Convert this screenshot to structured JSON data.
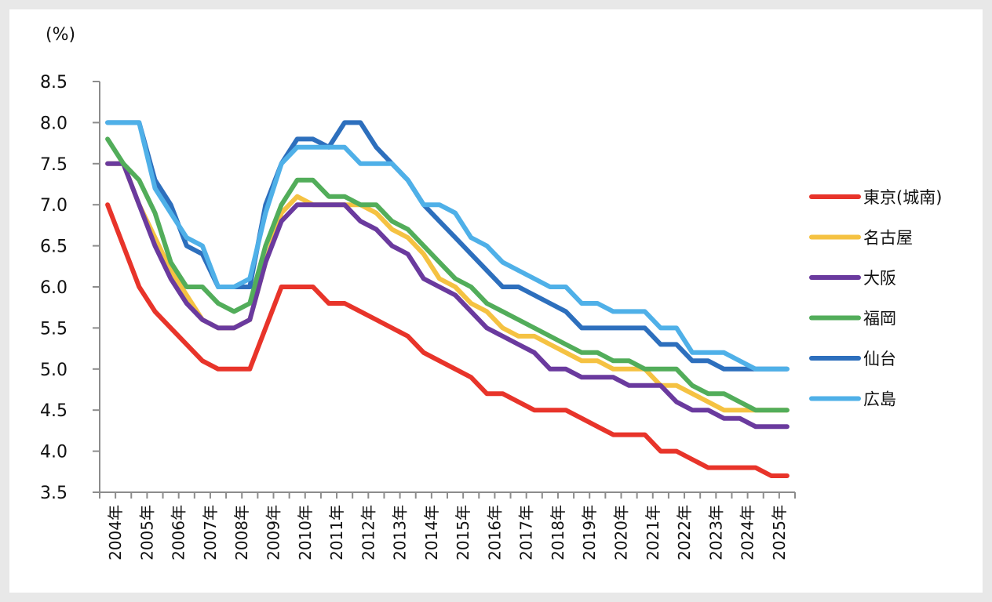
{
  "chart_data": {
    "type": "line",
    "title": "",
    "ylabel": "(%)",
    "xlabel": "",
    "ylim": [
      3.5,
      8.5
    ],
    "yticks": [
      "8.5",
      "8.0",
      "7.5",
      "7.0",
      "6.5",
      "6.0",
      "5.5",
      "5.0",
      "4.5",
      "4.0",
      "3.5"
    ],
    "ytick_values": [
      8.5,
      8.0,
      7.5,
      7.0,
      6.5,
      6.0,
      5.5,
      5.0,
      4.5,
      4.0,
      3.5
    ],
    "x_tick_labels": [
      "2004年",
      "2005年",
      "2006年",
      "2007年",
      "2008年",
      "2009年",
      "2010年",
      "2011年",
      "2012年",
      "2013年",
      "2014年",
      "2015年",
      "2016年",
      "2017年",
      "2018年",
      "2019年",
      "2020年",
      "2021年",
      "2022年",
      "2023年",
      "2024年",
      "2025年"
    ],
    "points_per_year": 2,
    "grid": false,
    "legend_position": "right",
    "series": [
      {
        "name": "東京(城南)",
        "color": "#e8342a",
        "values": [
          7.0,
          6.5,
          6.0,
          5.7,
          5.5,
          5.3,
          5.1,
          5.0,
          5.0,
          5.0,
          5.5,
          6.0,
          6.0,
          6.0,
          5.8,
          5.8,
          5.7,
          5.6,
          5.5,
          5.4,
          5.2,
          5.1,
          5.0,
          4.9,
          4.7,
          4.7,
          4.6,
          4.5,
          4.5,
          4.5,
          4.4,
          4.3,
          4.2,
          4.2,
          4.2,
          4.0,
          4.0,
          3.9,
          3.8,
          3.8,
          3.8,
          3.8,
          3.7,
          3.7
        ]
      },
      {
        "name": "名古屋",
        "color": "#f5c242",
        "values": [
          7.5,
          7.5,
          7.0,
          6.6,
          6.2,
          5.9,
          5.6,
          5.5,
          5.5,
          5.6,
          6.3,
          6.9,
          7.1,
          7.0,
          7.0,
          7.0,
          7.0,
          6.9,
          6.7,
          6.6,
          6.4,
          6.1,
          6.0,
          5.8,
          5.7,
          5.5,
          5.4,
          5.4,
          5.3,
          5.2,
          5.1,
          5.1,
          5.0,
          5.0,
          5.0,
          4.8,
          4.8,
          4.7,
          4.6,
          4.5,
          4.5,
          4.5,
          4.5,
          4.5
        ]
      },
      {
        "name": "大阪",
        "color": "#6a3a9e",
        "values": [
          7.5,
          7.5,
          7.0,
          6.5,
          6.1,
          5.8,
          5.6,
          5.5,
          5.5,
          5.6,
          6.3,
          6.8,
          7.0,
          7.0,
          7.0,
          7.0,
          6.8,
          6.7,
          6.5,
          6.4,
          6.1,
          6.0,
          5.9,
          5.7,
          5.5,
          5.4,
          5.3,
          5.2,
          5.0,
          5.0,
          4.9,
          4.9,
          4.9,
          4.8,
          4.8,
          4.8,
          4.6,
          4.5,
          4.5,
          4.4,
          4.4,
          4.3,
          4.3,
          4.3
        ]
      },
      {
        "name": "福岡",
        "color": "#52ad5a",
        "values": [
          7.8,
          7.5,
          7.3,
          6.9,
          6.3,
          6.0,
          6.0,
          5.8,
          5.7,
          5.8,
          6.5,
          7.0,
          7.3,
          7.3,
          7.1,
          7.1,
          7.0,
          7.0,
          6.8,
          6.7,
          6.5,
          6.3,
          6.1,
          6.0,
          5.8,
          5.7,
          5.6,
          5.5,
          5.4,
          5.3,
          5.2,
          5.2,
          5.1,
          5.1,
          5.0,
          5.0,
          5.0,
          4.8,
          4.7,
          4.7,
          4.6,
          4.5,
          4.5,
          4.5
        ]
      },
      {
        "name": "仙台",
        "color": "#2d6fbd",
        "values": [
          8.0,
          8.0,
          8.0,
          7.3,
          7.0,
          6.5,
          6.4,
          6.0,
          6.0,
          6.0,
          7.0,
          7.5,
          7.8,
          7.8,
          7.7,
          8.0,
          8.0,
          7.7,
          7.5,
          7.3,
          7.0,
          6.8,
          6.6,
          6.4,
          6.2,
          6.0,
          6.0,
          5.9,
          5.8,
          5.7,
          5.5,
          5.5,
          5.5,
          5.5,
          5.5,
          5.3,
          5.3,
          5.1,
          5.1,
          5.0,
          5.0,
          5.0,
          5.0,
          5.0
        ]
      },
      {
        "name": "広島",
        "color": "#4fb0e8",
        "values": [
          8.0,
          8.0,
          8.0,
          7.2,
          6.9,
          6.6,
          6.5,
          6.0,
          6.0,
          6.1,
          6.9,
          7.5,
          7.7,
          7.7,
          7.7,
          7.7,
          7.5,
          7.5,
          7.5,
          7.3,
          7.0,
          7.0,
          6.9,
          6.6,
          6.5,
          6.3,
          6.2,
          6.1,
          6.0,
          6.0,
          5.8,
          5.8,
          5.7,
          5.7,
          5.7,
          5.5,
          5.5,
          5.2,
          5.2,
          5.2,
          5.1,
          5.0,
          5.0,
          5.0
        ]
      }
    ]
  }
}
